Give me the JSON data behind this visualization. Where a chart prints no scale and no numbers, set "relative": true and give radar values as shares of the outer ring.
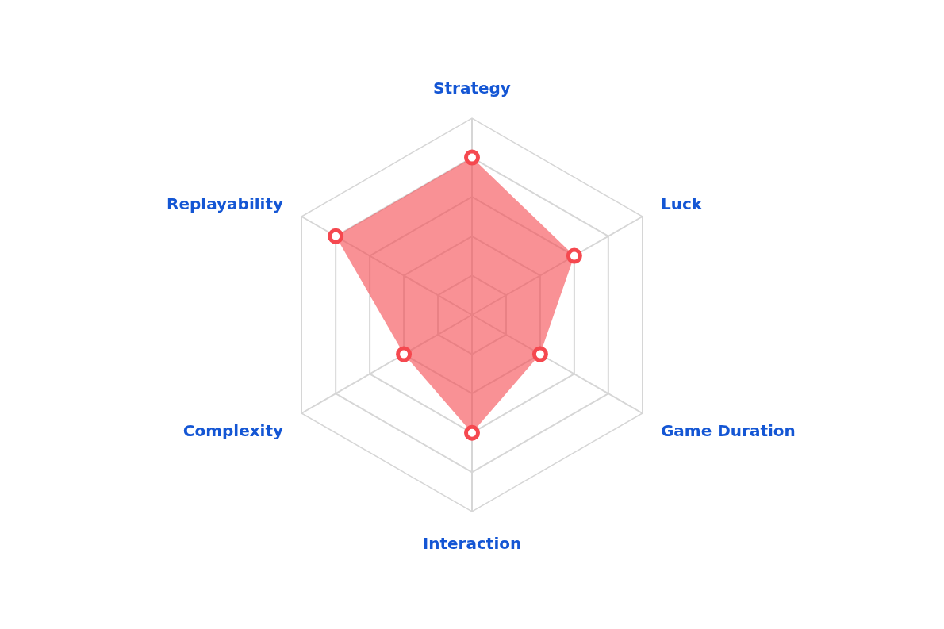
{
  "chart_data": {
    "type": "radar",
    "relative": true,
    "categories": [
      "Strategy",
      "Luck",
      "Game Duration",
      "Interaction",
      "Complexity",
      "Replayability"
    ],
    "series": [
      {
        "color": "#f5484f",
        "values": [
          0.8,
          0.6,
          0.4,
          0.6,
          0.4,
          0.8
        ]
      }
    ],
    "marker": "circle",
    "grid": true
  }
}
